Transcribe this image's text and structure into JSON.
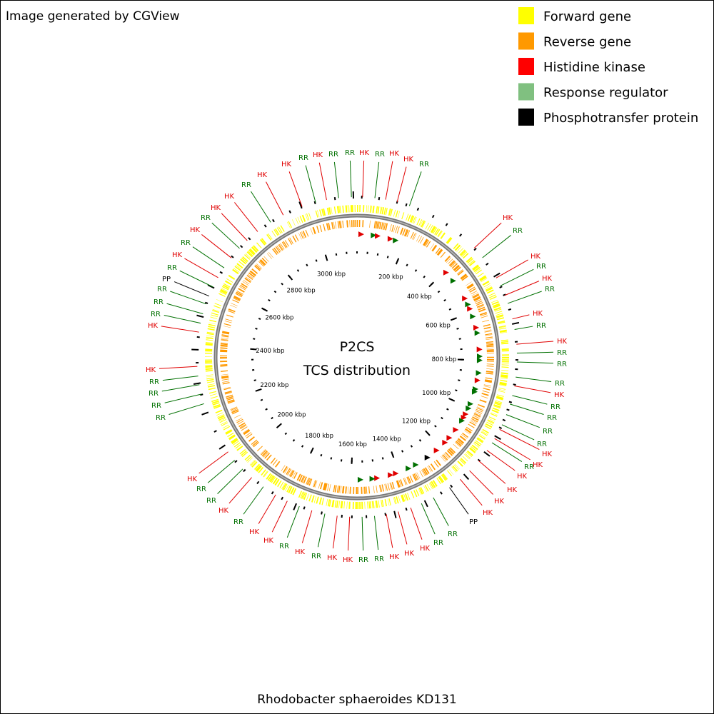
{
  "header": {
    "title": "Image generated by CGView"
  },
  "legend": [
    {
      "label": "Forward gene",
      "color": "#ffff00"
    },
    {
      "label": "Reverse gene",
      "color": "#ff9900"
    },
    {
      "label": "Histidine kinase",
      "color": "#ff0000"
    },
    {
      "label": "Response regulator",
      "color": "#80c080"
    },
    {
      "label": "Phosphotransfer protein",
      "color": "#000000"
    }
  ],
  "map": {
    "title": "P2CS",
    "subtitle": "TCS distribution",
    "xlim": [
      0,
      3150
    ],
    "ticks": [
      {
        "value": 200,
        "label": "200 kbp"
      },
      {
        "value": 400,
        "label": "400 kbp"
      },
      {
        "value": 600,
        "label": "600 kbp"
      },
      {
        "value": 800,
        "label": "800 kbp"
      },
      {
        "value": 1000,
        "label": "1000 kbp"
      },
      {
        "value": 1200,
        "label": "1200 kbp"
      },
      {
        "value": 1400,
        "label": "1400 kbp"
      },
      {
        "value": 1600,
        "label": "1600 kbp"
      },
      {
        "value": 1800,
        "label": "1800 kbp"
      },
      {
        "value": 2000,
        "label": "2000 kbp"
      },
      {
        "value": 2200,
        "label": "2200 kbp"
      },
      {
        "value": 2400,
        "label": "2400 kbp"
      },
      {
        "value": 2600,
        "label": "2600 kbp"
      },
      {
        "value": 2800,
        "label": "2800 kbp"
      },
      {
        "value": 3000,
        "label": "3000 kbp"
      }
    ],
    "features": [
      {
        "label": "HK",
        "color": "#e00000"
      },
      {
        "label": "RR",
        "color": "#007000"
      },
      {
        "label": "HK",
        "color": "#e00000"
      },
      {
        "label": "RR",
        "color": "#007000"
      },
      {
        "label": "RR",
        "color": "#007000"
      },
      {
        "label": "HK",
        "color": "#e00000"
      },
      {
        "label": "RR",
        "color": "#007000"
      },
      {
        "label": "HK",
        "color": "#e00000"
      },
      {
        "label": "HK",
        "color": "#e00000"
      },
      {
        "label": "RR",
        "color": "#007000"
      },
      {
        "label": "RR",
        "color": "#007000"
      },
      {
        "label": "HK",
        "color": "#e00000"
      },
      {
        "label": "HK",
        "color": "#e00000"
      },
      {
        "label": "RR",
        "color": "#007000"
      },
      {
        "label": "HK",
        "color": "#e00000"
      },
      {
        "label": "HK",
        "color": "#e00000"
      },
      {
        "label": "RR",
        "color": "#007000"
      },
      {
        "label": "HK",
        "color": "#e00000"
      },
      {
        "label": "RR",
        "color": "#007000"
      },
      {
        "label": "PP",
        "color": "#000000"
      },
      {
        "label": "RR",
        "color": "#007000"
      },
      {
        "label": "RR",
        "color": "#007000"
      },
      {
        "label": "RR",
        "color": "#007000"
      },
      {
        "label": "HK",
        "color": "#e00000"
      },
      {
        "label": "HK",
        "color": "#e00000"
      },
      {
        "label": "RR",
        "color": "#007000"
      },
      {
        "label": "RR",
        "color": "#007000"
      },
      {
        "label": "RR",
        "color": "#007000"
      },
      {
        "label": "RR",
        "color": "#007000"
      },
      {
        "label": "HK",
        "color": "#e00000"
      },
      {
        "label": "RR",
        "color": "#007000"
      },
      {
        "label": "HK",
        "color": "#e00000"
      },
      {
        "label": "RR",
        "color": "#007000"
      },
      {
        "label": "HK",
        "color": "#e00000"
      },
      {
        "label": "RR",
        "color": "#007000"
      },
      {
        "label": "HK",
        "color": "#e00000"
      },
      {
        "label": "RR",
        "color": "#007000"
      },
      {
        "label": "HK",
        "color": "#e00000"
      },
      {
        "label": "RR",
        "color": "#007000"
      },
      {
        "label": "RR",
        "color": "#007000"
      },
      {
        "label": "RR",
        "color": "#007000"
      },
      {
        "label": "HK",
        "color": "#e00000"
      },
      {
        "label": "RR",
        "color": "#007000"
      },
      {
        "label": "RR",
        "color": "#007000"
      },
      {
        "label": "RR",
        "color": "#007000"
      },
      {
        "label": "RR",
        "color": "#007000"
      },
      {
        "label": "HK",
        "color": "#e00000"
      },
      {
        "label": "HK",
        "color": "#e00000"
      },
      {
        "label": "RR",
        "color": "#007000"
      },
      {
        "label": "HK",
        "color": "#e00000"
      },
      {
        "label": "HK",
        "color": "#e00000"
      },
      {
        "label": "HK",
        "color": "#e00000"
      },
      {
        "label": "HK",
        "color": "#e00000"
      },
      {
        "label": "PP",
        "color": "#000000"
      },
      {
        "label": "RR",
        "color": "#007000"
      },
      {
        "label": "RR",
        "color": "#007000"
      },
      {
        "label": "HK",
        "color": "#e00000"
      },
      {
        "label": "HK",
        "color": "#e00000"
      },
      {
        "label": "HK",
        "color": "#e00000"
      },
      {
        "label": "RR",
        "color": "#007000"
      },
      {
        "label": "RR",
        "color": "#007000"
      },
      {
        "label": "HK",
        "color": "#e00000"
      },
      {
        "label": "HK",
        "color": "#e00000"
      },
      {
        "label": "RR",
        "color": "#007000"
      },
      {
        "label": "HK",
        "color": "#e00000"
      },
      {
        "label": "RR",
        "color": "#007000"
      },
      {
        "label": "HK",
        "color": "#e00000"
      },
      {
        "label": "HK",
        "color": "#e00000"
      },
      {
        "label": "RR",
        "color": "#007000"
      },
      {
        "label": "HK",
        "color": "#e00000"
      },
      {
        "label": "RR",
        "color": "#007000"
      },
      {
        "label": "RR",
        "color": "#007000"
      },
      {
        "label": "HK",
        "color": "#e00000"
      }
    ]
  },
  "footer": {
    "title": "Rhodobacter sphaeroides KD131"
  }
}
